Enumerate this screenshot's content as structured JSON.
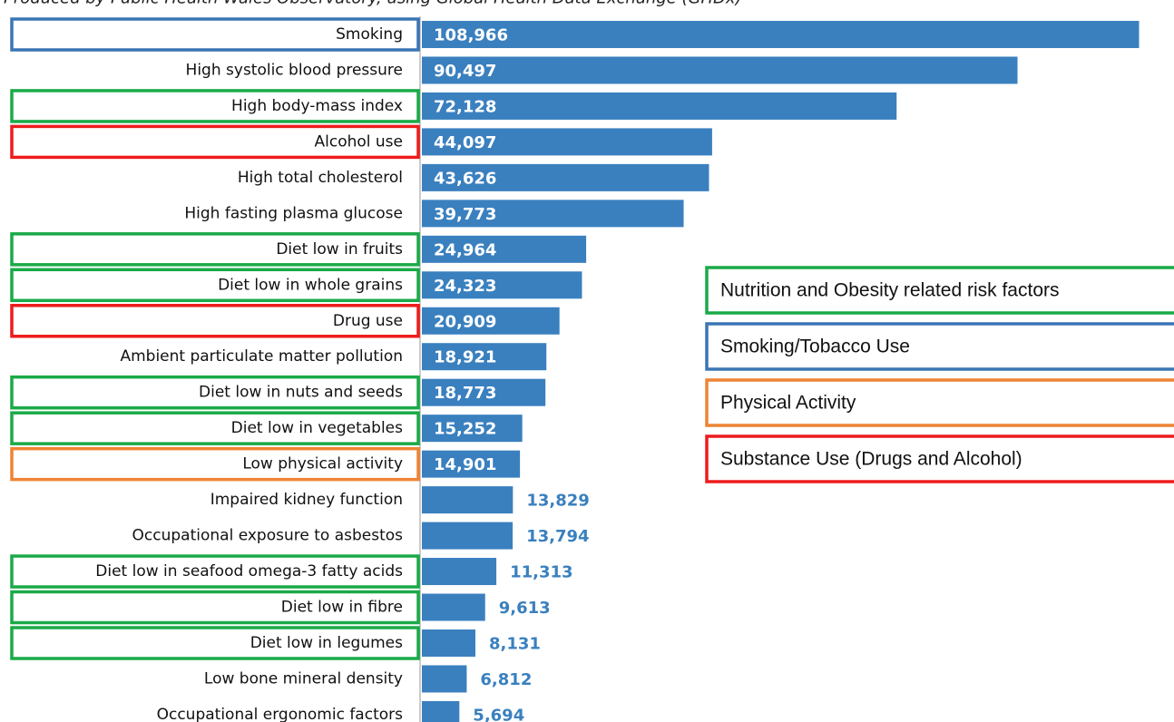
{
  "chart_data": {
    "type": "barh",
    "subtitle": "Produced by Public Health Wales Observatory, using Global Health Data Exchange (GHDx)",
    "categories": [
      "Smoking",
      "High systolic blood pressure",
      "High body-mass index",
      "Alcohol use",
      "High total cholesterol",
      "High fasting plasma glucose",
      "Diet low in fruits",
      "Diet low in whole grains",
      "Drug use",
      "Ambient particulate matter pollution",
      "Diet low in nuts and seeds",
      "Diet low in vegetables",
      "Low physical activity",
      "Impaired kidney function",
      "Occupational exposure to asbestos",
      "Diet low in seafood omega-3 fatty acids",
      "Diet low in fibre",
      "Diet low in legumes",
      "Low bone mineral density",
      "Occupational ergonomic factors"
    ],
    "values": [
      108966,
      90497,
      72128,
      44097,
      43626,
      39773,
      24964,
      24323,
      20909,
      18921,
      18773,
      15252,
      14901,
      13829,
      13794,
      11313,
      9613,
      8131,
      6812,
      5694
    ],
    "value_labels": [
      "108,966",
      "90,497",
      "72,128",
      "44,097",
      "43,626",
      "39,773",
      "24,964",
      "24,323",
      "20,909",
      "18,921",
      "18,773",
      "15,252",
      "14,901",
      "13,829",
      "13,794",
      "11,313",
      "9,613",
      "8,131",
      "6,812",
      "5,694"
    ],
    "color": "#3a80bf",
    "xlim": [
      0,
      110000
    ],
    "legend": [
      {
        "name": "Nutrition and Obesity related risk factors",
        "color": "#1aaa48"
      },
      {
        "name": "Smoking/Tobacco Use",
        "color": "#3a75b5"
      },
      {
        "name": "Physical Activity",
        "color": "#ee8434"
      },
      {
        "name": "Substance Use (Drugs and Alcohol)",
        "color": "#ee1c1c"
      }
    ],
    "category_groups": [
      1,
      null,
      0,
      3,
      null,
      null,
      0,
      0,
      3,
      null,
      0,
      0,
      2,
      null,
      null,
      0,
      0,
      0,
      null,
      null
    ]
  }
}
